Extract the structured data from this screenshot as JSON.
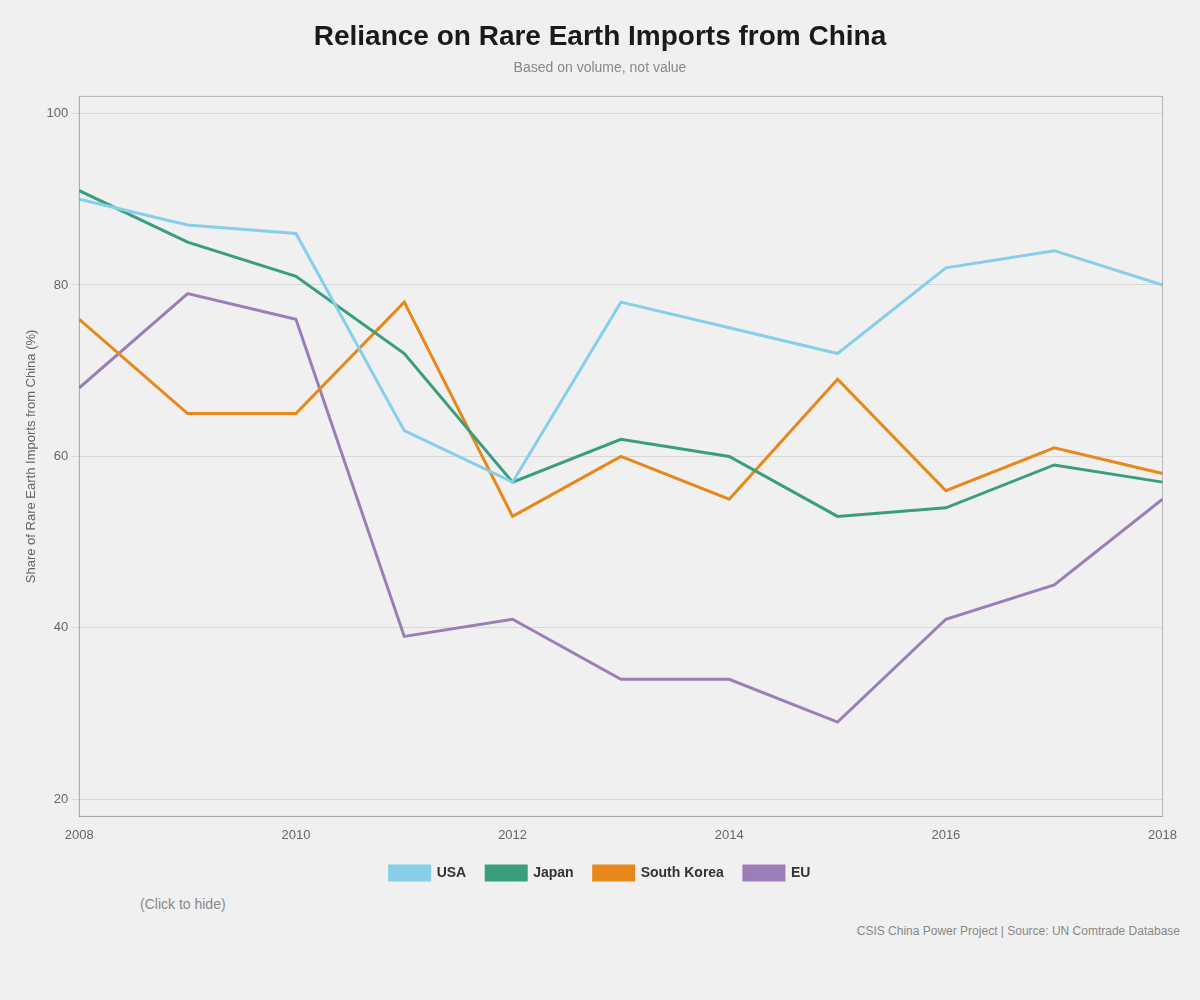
{
  "chart_data": {
    "type": "line",
    "title": "Reliance on Rare Earth Imports from China",
    "subtitle": "Based on volume, not value",
    "ylabel": "Share of Rare Earth Imports from China (%)",
    "annotations": [
      "(Click to hide)",
      "CSIS China Power Project | Source: UN Comtrade Database"
    ],
    "x": [
      2008,
      2009,
      2010,
      2011,
      2012,
      2013,
      2014,
      2015,
      2016,
      2017,
      2018
    ],
    "series": [
      {
        "name": "USA",
        "color": "#87CEEB",
        "values": [
          90,
          87,
          86,
          63,
          57,
          78,
          75,
          72,
          82,
          84,
          80
        ]
      },
      {
        "name": "Japan",
        "color": "#3a9e7e",
        "values": [
          91,
          85,
          81,
          72,
          57,
          62,
          60,
          53,
          54,
          59,
          57
        ]
      },
      {
        "name": "South Korea",
        "color": "#E8871A",
        "values": [
          76,
          65,
          65,
          78,
          53,
          60,
          55,
          69,
          56,
          61,
          58
        ]
      },
      {
        "name": "EU",
        "color": "#9b7eb8",
        "values": [
          68,
          79,
          76,
          39,
          41,
          34,
          34,
          29,
          41,
          45,
          55
        ]
      }
    ],
    "xlim": [
      2008,
      2018
    ],
    "xticks": [
      2008,
      2010,
      2012,
      2014,
      2016,
      2018
    ],
    "ylim": [
      18,
      102
    ],
    "yticks": [
      20,
      40,
      60,
      80,
      100
    ],
    "grid": true,
    "legend": "bottom"
  }
}
